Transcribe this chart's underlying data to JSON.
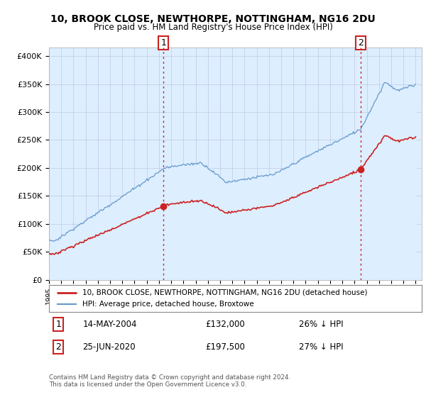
{
  "title": "10, BROOK CLOSE, NEWTHORPE, NOTTINGHAM, NG16 2DU",
  "subtitle": "Price paid vs. HM Land Registry's House Price Index (HPI)",
  "legend_property": "10, BROOK CLOSE, NEWTHORPE, NOTTINGHAM, NG16 2DU (detached house)",
  "legend_hpi": "HPI: Average price, detached house, Broxtowe",
  "annotation1_date": "14-MAY-2004",
  "annotation1_price": "£132,000",
  "annotation1_hpi": "26% ↓ HPI",
  "annotation2_date": "25-JUN-2020",
  "annotation2_price": "£197,500",
  "annotation2_hpi": "27% ↓ HPI",
  "footer": "Contains HM Land Registry data © Crown copyright and database right 2024.\nThis data is licensed under the Open Government Licence v3.0.",
  "property_color": "#cc2222",
  "hpi_color": "#6699cc",
  "hpi_fill_color": "#ddeeff",
  "annotation_color": "#cc2222",
  "background_color": "#ffffff",
  "ylabel_ticks": [
    "£0",
    "£50K",
    "£100K",
    "£150K",
    "£200K",
    "£250K",
    "£300K",
    "£350K",
    "£400K"
  ],
  "ylabel_values": [
    0,
    50000,
    100000,
    150000,
    200000,
    250000,
    300000,
    350000,
    400000
  ],
  "ylim": [
    0,
    415000
  ],
  "sale1_year": 2004.37,
  "sale1_price": 132000,
  "sale2_year": 2020.48,
  "sale2_price": 197500,
  "xmin": 1995,
  "xmax": 2025.5
}
